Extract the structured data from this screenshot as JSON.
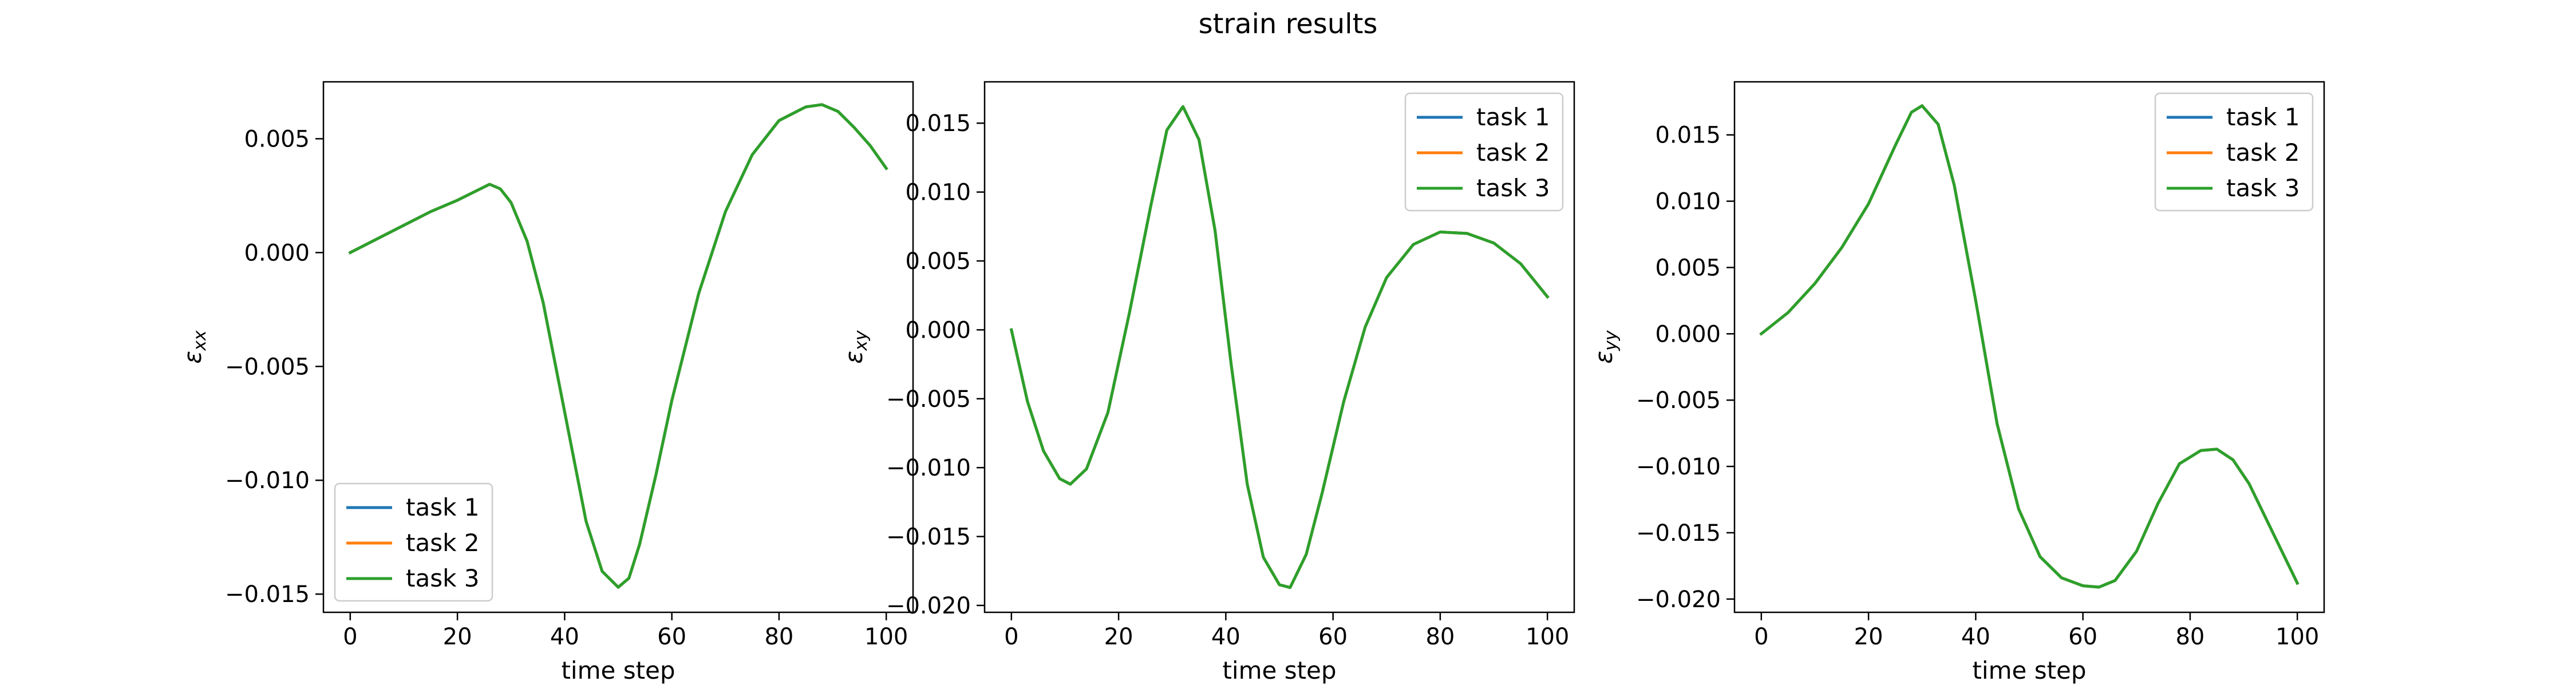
{
  "figure": {
    "title": "strain results"
  },
  "colors": {
    "task 1": "#1f77b4",
    "task 2": "#ff7f0e",
    "task 3": "#2ca02c"
  },
  "chart_data": [
    {
      "type": "line",
      "xlabel": "time step",
      "ylabel": "ε_xx",
      "ylabel_main": "ε",
      "ylabel_sub": "xx",
      "xlim": [
        -5,
        105
      ],
      "ylim": [
        -0.0158,
        0.0075
      ],
      "xticks": [
        0,
        20,
        40,
        60,
        80,
        100
      ],
      "xtick_labels": [
        "0",
        "20",
        "40",
        "60",
        "80",
        "100"
      ],
      "yticks": [
        -0.015,
        -0.01,
        -0.005,
        0.0,
        0.005
      ],
      "ytick_labels": [
        "−0.015",
        "−0.010",
        "−0.005",
        "0.000",
        "0.005"
      ],
      "legend": "lower-left",
      "grid": false,
      "x": [
        0,
        5,
        10,
        15,
        20,
        26,
        28,
        30,
        33,
        36,
        40,
        44,
        47,
        50,
        52,
        54,
        57,
        60,
        65,
        70,
        75,
        80,
        85,
        88,
        91,
        94,
        97,
        100
      ],
      "series": [
        {
          "name": "task 1",
          "values": [
            0.0,
            0.0006,
            0.0012,
            0.0018,
            0.0023,
            0.003,
            0.0028,
            0.0022,
            0.0005,
            -0.0022,
            -0.007,
            -0.0118,
            -0.014,
            -0.0147,
            -0.0143,
            -0.0128,
            -0.0098,
            -0.0065,
            -0.0018,
            0.0018,
            0.0043,
            0.0058,
            0.0064,
            0.0065,
            0.0062,
            0.0055,
            0.0047,
            0.0037
          ]
        },
        {
          "name": "task 2",
          "values": [
            0.0,
            0.0006,
            0.0012,
            0.0018,
            0.0023,
            0.003,
            0.0028,
            0.0022,
            0.0005,
            -0.0022,
            -0.007,
            -0.0118,
            -0.014,
            -0.0147,
            -0.0143,
            -0.0128,
            -0.0098,
            -0.0065,
            -0.0018,
            0.0018,
            0.0043,
            0.0058,
            0.0064,
            0.0065,
            0.0062,
            0.0055,
            0.0047,
            0.0037
          ]
        },
        {
          "name": "task 3",
          "values": [
            0.0,
            0.0006,
            0.0012,
            0.0018,
            0.0023,
            0.003,
            0.0028,
            0.0022,
            0.0005,
            -0.0022,
            -0.007,
            -0.0118,
            -0.014,
            -0.0147,
            -0.0143,
            -0.0128,
            -0.0098,
            -0.0065,
            -0.0018,
            0.0018,
            0.0043,
            0.0058,
            0.0064,
            0.0065,
            0.0062,
            0.0055,
            0.0047,
            0.0037
          ]
        }
      ]
    },
    {
      "type": "line",
      "xlabel": "time step",
      "ylabel": "ε_xy",
      "ylabel_main": "ε",
      "ylabel_sub": "xy",
      "xlim": [
        -5,
        105
      ],
      "ylim": [
        -0.0205,
        0.018
      ],
      "xticks": [
        0,
        20,
        40,
        60,
        80,
        100
      ],
      "xtick_labels": [
        "0",
        "20",
        "40",
        "60",
        "80",
        "100"
      ],
      "yticks": [
        -0.02,
        -0.015,
        -0.01,
        -0.005,
        0.0,
        0.005,
        0.01,
        0.015
      ],
      "ytick_labels": [
        "−0.020",
        "−0.015",
        "−0.010",
        "−0.005",
        "0.000",
        "0.005",
        "0.010",
        "0.015"
      ],
      "legend": "upper-right",
      "grid": false,
      "x": [
        0,
        3,
        6,
        9,
        11,
        14,
        18,
        22,
        26,
        29,
        32,
        35,
        38,
        41,
        44,
        47,
        50,
        52,
        55,
        58,
        62,
        66,
        70,
        75,
        80,
        85,
        90,
        95,
        100
      ],
      "series": [
        {
          "name": "task 1",
          "values": [
            0.0,
            -0.0052,
            -0.0088,
            -0.0108,
            -0.0112,
            -0.0101,
            -0.006,
            0.0012,
            0.009,
            0.0145,
            0.0162,
            0.0138,
            0.0072,
            -0.0025,
            -0.0112,
            -0.0165,
            -0.0185,
            -0.0187,
            -0.0163,
            -0.0118,
            -0.0052,
            0.0002,
            0.0038,
            0.0062,
            0.0071,
            0.007,
            0.0063,
            0.0048,
            0.0024
          ]
        },
        {
          "name": "task 2",
          "values": [
            0.0,
            -0.0052,
            -0.0088,
            -0.0108,
            -0.0112,
            -0.0101,
            -0.006,
            0.0012,
            0.009,
            0.0145,
            0.0162,
            0.0138,
            0.0072,
            -0.0025,
            -0.0112,
            -0.0165,
            -0.0185,
            -0.0187,
            -0.0163,
            -0.0118,
            -0.0052,
            0.0002,
            0.0038,
            0.0062,
            0.0071,
            0.007,
            0.0063,
            0.0048,
            0.0024
          ]
        },
        {
          "name": "task 3",
          "values": [
            0.0,
            -0.0052,
            -0.0088,
            -0.0108,
            -0.0112,
            -0.0101,
            -0.006,
            0.0012,
            0.009,
            0.0145,
            0.0162,
            0.0138,
            0.0072,
            -0.0025,
            -0.0112,
            -0.0165,
            -0.0185,
            -0.0187,
            -0.0163,
            -0.0118,
            -0.0052,
            0.0002,
            0.0038,
            0.0062,
            0.0071,
            0.007,
            0.0063,
            0.0048,
            0.0024
          ]
        }
      ]
    },
    {
      "type": "line",
      "xlabel": "time step",
      "ylabel": "ε_yy",
      "ylabel_main": "ε",
      "ylabel_sub": "yy",
      "xlim": [
        -5,
        105
      ],
      "ylim": [
        -0.021,
        0.019
      ],
      "xticks": [
        0,
        20,
        40,
        60,
        80,
        100
      ],
      "xtick_labels": [
        "0",
        "20",
        "40",
        "60",
        "80",
        "100"
      ],
      "yticks": [
        -0.02,
        -0.015,
        -0.01,
        -0.005,
        0.0,
        0.005,
        0.01,
        0.015
      ],
      "ytick_labels": [
        "−0.020",
        "−0.015",
        "−0.010",
        "−0.005",
        "0.000",
        "0.005",
        "0.010",
        "0.015"
      ],
      "legend": "upper-right",
      "grid": false,
      "x": [
        0,
        5,
        10,
        15,
        20,
        25,
        28,
        30,
        33,
        36,
        40,
        44,
        48,
        52,
        56,
        60,
        63,
        66,
        70,
        74,
        78,
        82,
        85,
        88,
        91,
        94,
        97,
        100
      ],
      "series": [
        {
          "name": "task 1",
          "values": [
            0.0,
            0.0016,
            0.0038,
            0.0065,
            0.0098,
            0.0142,
            0.0167,
            0.0172,
            0.0158,
            0.0112,
            0.0025,
            -0.0068,
            -0.0132,
            -0.0168,
            -0.0184,
            -0.019,
            -0.0191,
            -0.0186,
            -0.0164,
            -0.0128,
            -0.0098,
            -0.0088,
            -0.0087,
            -0.0095,
            -0.0113,
            -0.0138,
            -0.0163,
            -0.0188
          ]
        },
        {
          "name": "task 2",
          "values": [
            0.0,
            0.0016,
            0.0038,
            0.0065,
            0.0098,
            0.0142,
            0.0167,
            0.0172,
            0.0158,
            0.0112,
            0.0025,
            -0.0068,
            -0.0132,
            -0.0168,
            -0.0184,
            -0.019,
            -0.0191,
            -0.0186,
            -0.0164,
            -0.0128,
            -0.0098,
            -0.0088,
            -0.0087,
            -0.0095,
            -0.0113,
            -0.0138,
            -0.0163,
            -0.0188
          ]
        },
        {
          "name": "task 3",
          "values": [
            0.0,
            0.0016,
            0.0038,
            0.0065,
            0.0098,
            0.0142,
            0.0167,
            0.0172,
            0.0158,
            0.0112,
            0.0025,
            -0.0068,
            -0.0132,
            -0.0168,
            -0.0184,
            -0.019,
            -0.0191,
            -0.0186,
            -0.0164,
            -0.0128,
            -0.0098,
            -0.0088,
            -0.0087,
            -0.0095,
            -0.0113,
            -0.0138,
            -0.0163,
            -0.0188
          ]
        }
      ]
    }
  ]
}
